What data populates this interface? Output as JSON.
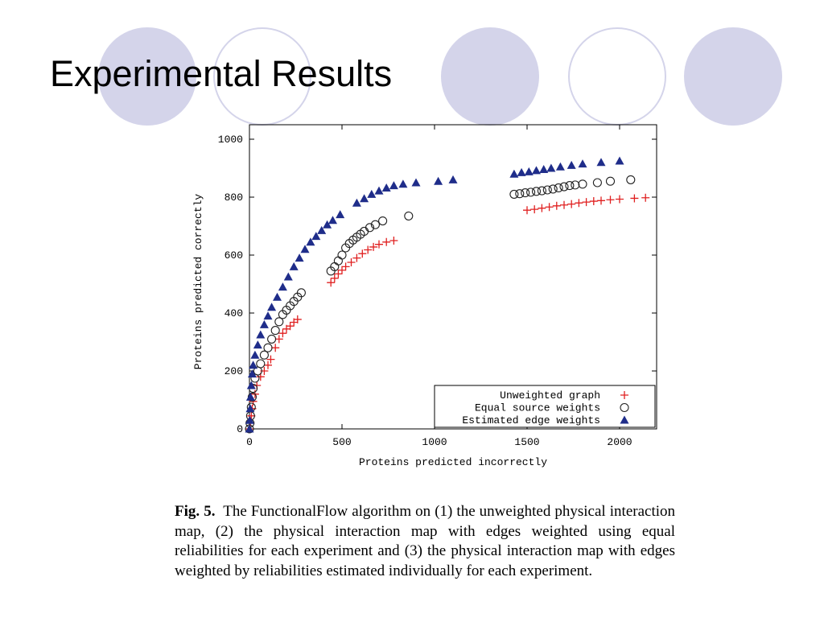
{
  "slide": {
    "title": "Experimental Results",
    "caption_label": "Fig. 5.",
    "caption_text": "The FunctionalFlow algorithm on (1) the unweighted physical interaction map, (2) the physical interaction map with edges weighted using equal reliabilities for each experiment and (3) the physical interaction map with edges weighted by reliabilities estimated individually for each experiment.",
    "decor_colors": {
      "circle_fill": "#d4d4ea"
    }
  },
  "chart_data": {
    "type": "scatter",
    "xlabel": "Proteins predicted incorrectly",
    "ylabel": "Proteins predicted correctly",
    "xlim": [
      0,
      2200
    ],
    "ylim": [
      0,
      1050
    ],
    "x_ticks": [
      0,
      500,
      1000,
      1500,
      2000
    ],
    "y_ticks": [
      0,
      200,
      400,
      600,
      800,
      1000
    ],
    "grid": false,
    "legend_position": "bottom-right",
    "series": [
      {
        "name": "Unweighted graph",
        "marker": "plus",
        "color": "#e02020",
        "points": [
          [
            0,
            0
          ],
          [
            5,
            20
          ],
          [
            10,
            45
          ],
          [
            15,
            70
          ],
          [
            20,
            95
          ],
          [
            30,
            120
          ],
          [
            40,
            150
          ],
          [
            60,
            180
          ],
          [
            80,
            200
          ],
          [
            100,
            220
          ],
          [
            115,
            240
          ],
          [
            140,
            280
          ],
          [
            160,
            310
          ],
          [
            180,
            330
          ],
          [
            200,
            345
          ],
          [
            220,
            355
          ],
          [
            240,
            368
          ],
          [
            260,
            378
          ],
          [
            440,
            505
          ],
          [
            460,
            520
          ],
          [
            480,
            535
          ],
          [
            500,
            548
          ],
          [
            520,
            560
          ],
          [
            550,
            575
          ],
          [
            580,
            590
          ],
          [
            610,
            605
          ],
          [
            640,
            618
          ],
          [
            670,
            628
          ],
          [
            700,
            637
          ],
          [
            740,
            645
          ],
          [
            780,
            650
          ],
          [
            1500,
            755
          ],
          [
            1540,
            758
          ],
          [
            1580,
            762
          ],
          [
            1620,
            766
          ],
          [
            1660,
            770
          ],
          [
            1700,
            773
          ],
          [
            1740,
            776
          ],
          [
            1780,
            780
          ],
          [
            1820,
            783
          ],
          [
            1860,
            786
          ],
          [
            1900,
            788
          ],
          [
            1950,
            791
          ],
          [
            2000,
            793
          ],
          [
            2080,
            796
          ],
          [
            2140,
            798
          ]
        ]
      },
      {
        "name": "Equal source weights",
        "marker": "circle",
        "color": "#222222",
        "points": [
          [
            0,
            0
          ],
          [
            3,
            20
          ],
          [
            6,
            45
          ],
          [
            10,
            75
          ],
          [
            15,
            110
          ],
          [
            20,
            140
          ],
          [
            30,
            175
          ],
          [
            45,
            200
          ],
          [
            60,
            225
          ],
          [
            80,
            255
          ],
          [
            100,
            280
          ],
          [
            120,
            310
          ],
          [
            140,
            340
          ],
          [
            160,
            370
          ],
          [
            180,
            395
          ],
          [
            200,
            410
          ],
          [
            220,
            425
          ],
          [
            240,
            440
          ],
          [
            260,
            455
          ],
          [
            280,
            470
          ],
          [
            440,
            545
          ],
          [
            460,
            560
          ],
          [
            480,
            580
          ],
          [
            500,
            600
          ],
          [
            520,
            625
          ],
          [
            540,
            640
          ],
          [
            560,
            652
          ],
          [
            580,
            662
          ],
          [
            600,
            672
          ],
          [
            620,
            682
          ],
          [
            650,
            695
          ],
          [
            680,
            705
          ],
          [
            720,
            718
          ],
          [
            860,
            735
          ],
          [
            1430,
            810
          ],
          [
            1460,
            812
          ],
          [
            1490,
            815
          ],
          [
            1520,
            817
          ],
          [
            1550,
            820
          ],
          [
            1580,
            822
          ],
          [
            1610,
            825
          ],
          [
            1640,
            828
          ],
          [
            1670,
            832
          ],
          [
            1700,
            836
          ],
          [
            1730,
            840
          ],
          [
            1760,
            842
          ],
          [
            1800,
            845
          ],
          [
            1880,
            850
          ],
          [
            1950,
            855
          ],
          [
            2060,
            860
          ]
        ]
      },
      {
        "name": "Estimated edge weights",
        "marker": "triangle",
        "color": "#1f2d8a",
        "points": [
          [
            0,
            0
          ],
          [
            2,
            30
          ],
          [
            4,
            70
          ],
          [
            6,
            110
          ],
          [
            10,
            150
          ],
          [
            15,
            190
          ],
          [
            20,
            220
          ],
          [
            30,
            255
          ],
          [
            45,
            290
          ],
          [
            60,
            325
          ],
          [
            80,
            360
          ],
          [
            100,
            390
          ],
          [
            120,
            420
          ],
          [
            150,
            455
          ],
          [
            180,
            490
          ],
          [
            210,
            525
          ],
          [
            240,
            560
          ],
          [
            270,
            590
          ],
          [
            300,
            620
          ],
          [
            330,
            645
          ],
          [
            360,
            665
          ],
          [
            390,
            685
          ],
          [
            420,
            705
          ],
          [
            450,
            720
          ],
          [
            490,
            740
          ],
          [
            580,
            780
          ],
          [
            620,
            795
          ],
          [
            660,
            810
          ],
          [
            700,
            822
          ],
          [
            740,
            832
          ],
          [
            780,
            840
          ],
          [
            830,
            845
          ],
          [
            900,
            850
          ],
          [
            1020,
            855
          ],
          [
            1100,
            860
          ],
          [
            1430,
            880
          ],
          [
            1470,
            885
          ],
          [
            1510,
            888
          ],
          [
            1550,
            892
          ],
          [
            1590,
            896
          ],
          [
            1630,
            900
          ],
          [
            1680,
            905
          ],
          [
            1740,
            910
          ],
          [
            1800,
            915
          ],
          [
            1900,
            920
          ],
          [
            2000,
            925
          ]
        ]
      }
    ]
  }
}
